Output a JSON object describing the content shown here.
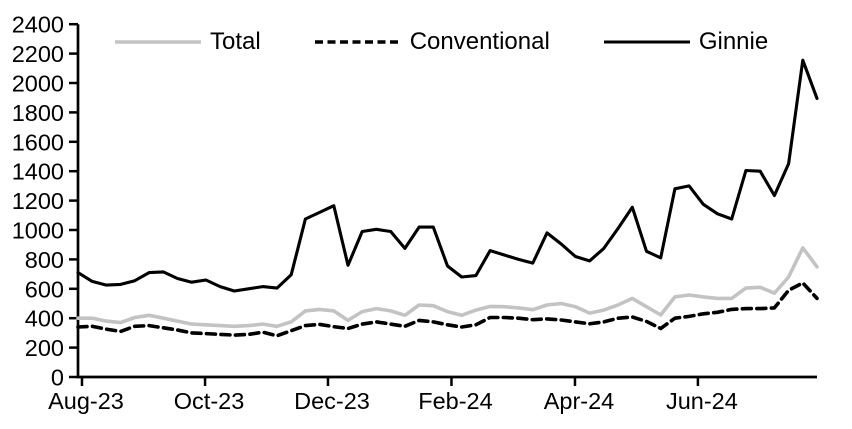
{
  "chart_data": {
    "type": "line",
    "title": "",
    "xlabel": "",
    "ylabel": "",
    "ylim": [
      0,
      2400
    ],
    "y_tick_step": 200,
    "grid": false,
    "legend_position": "top",
    "x_tick_labels": [
      "Aug-23",
      "Oct-23",
      "Dec-23",
      "Feb-24",
      "Apr-24",
      "Jun-24"
    ],
    "x_tick_positions_weeks": [
      0.28,
      8.94,
      17.59,
      26.28,
      34.97,
      43.62
    ],
    "n_points": 53,
    "x_description": "weekly observations from Aug-23 to Aug-24",
    "axis_color": "#000000",
    "series": [
      {
        "name": "Total",
        "color": "#c3c3c3",
        "style": "solid",
        "values": [
          400,
          400,
          380,
          370,
          405,
          420,
          400,
          380,
          360,
          355,
          350,
          345,
          350,
          360,
          345,
          375,
          450,
          460,
          450,
          385,
          445,
          465,
          450,
          420,
          490,
          485,
          445,
          420,
          455,
          480,
          478,
          470,
          458,
          490,
          500,
          478,
          435,
          455,
          490,
          535,
          478,
          422,
          545,
          558,
          545,
          535,
          535,
          605,
          610,
          570,
          680,
          878,
          750
        ]
      },
      {
        "name": "Conventional",
        "color": "#000000",
        "style": "dashed",
        "values": [
          340,
          345,
          325,
          310,
          345,
          350,
          335,
          320,
          300,
          295,
          290,
          285,
          290,
          305,
          280,
          315,
          350,
          358,
          342,
          330,
          360,
          375,
          360,
          345,
          385,
          375,
          355,
          340,
          355,
          405,
          405,
          400,
          390,
          395,
          388,
          375,
          362,
          375,
          400,
          408,
          378,
          330,
          400,
          412,
          430,
          440,
          460,
          465,
          465,
          470,
          590,
          640,
          535
        ]
      },
      {
        "name": "Ginnie",
        "color": "#000000",
        "style": "solid",
        "values": [
          710,
          650,
          625,
          630,
          655,
          710,
          715,
          670,
          645,
          660,
          615,
          585,
          600,
          615,
          605,
          695,
          1075,
          1120,
          1165,
          760,
          990,
          1005,
          990,
          875,
          1020,
          1020,
          755,
          680,
          690,
          860,
          830,
          800,
          775,
          980,
          905,
          820,
          790,
          875,
          1010,
          1155,
          855,
          810,
          1280,
          1300,
          1175,
          1110,
          1075,
          1405,
          1400,
          1235,
          1450,
          2155,
          1895
        ]
      }
    ]
  }
}
